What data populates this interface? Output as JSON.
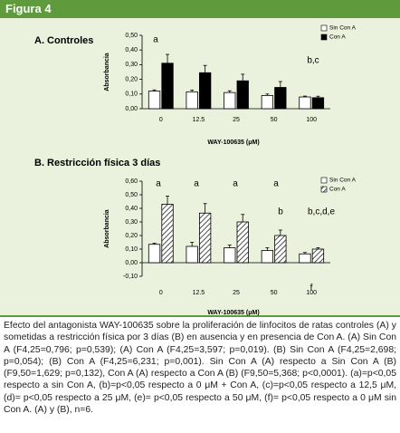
{
  "header": "Figura 4",
  "caption": "Efecto del antagonista WAY-100635 sobre la proliferación de linfocitos de ratas controles (A) y sometidas a restricción física por 3 días (B) en ausencia y en presencia de Con A. (A) Sin Con A (F4,25=0,796; p=0,539); (A) Con A (F4,25=3,597; p=0,019). (B) Sin Con A (F4,25=2,698; p=0,054); (B) Con A (F4,25=6,231; p=0,001). Sin Con A (A) respecto a Sin Con A (B) (F9,50=1,629; p=0,132), Con A (A) respecto a Con A (B) (F9,50=5,368; p<0,0001). (a)=p<0,05 respecto a sin Con A, (b)=p<0,05 respecto a 0 μM + Con A, (c)=p<0,05 respecto a 12,5 μM, (d)= p<0,05 respecto a 25 μM, (e)= p<0,05 respecto a 50 μM, (f)= p<0,05 respecto a 0 μM sin Con A. (A) y (B), n=6.",
  "chart_data": [
    {
      "type": "bar",
      "title": "A. Controles",
      "y_label": "Absorbancia",
      "x_label": "WAY-100635 (μM)",
      "categories": [
        "0",
        "12.5",
        "25",
        "50",
        "100"
      ],
      "series": [
        {
          "name": "Sin Con A",
          "color": "#ffffff",
          "hatch": false,
          "values": [
            0.12,
            0.115,
            0.11,
            0.09,
            0.08
          ],
          "errors": [
            0.008,
            0.012,
            0.012,
            0.01,
            0.006
          ]
        },
        {
          "name": "Con A",
          "color": "#000000",
          "hatch": false,
          "values": [
            0.31,
            0.245,
            0.19,
            0.145,
            0.075
          ],
          "errors": [
            0.06,
            0.05,
            0.045,
            0.04,
            0.01
          ]
        }
      ],
      "ylim": [
        0,
        0.5
      ],
      "yticks": [
        {
          "value": 0,
          "label": "0,00"
        },
        {
          "value": 0.1,
          "label": "0,10"
        },
        {
          "value": 0.2,
          "label": "0,20"
        },
        {
          "value": 0.3,
          "label": "0,30"
        },
        {
          "value": 0.4,
          "label": "0,40"
        },
        {
          "value": 0.5,
          "label": "0,50"
        }
      ],
      "annotations": [
        "a",
        "b,c"
      ]
    },
    {
      "type": "bar",
      "title": "B. Restricción física 3 días",
      "y_label": "Absorbancia",
      "x_label": "WAY-100635 (μM)",
      "categories": [
        "0",
        "12.5",
        "25",
        "50",
        "100"
      ],
      "series": [
        {
          "name": "Sin Con A",
          "color": "#ffffff",
          "hatch": false,
          "values": [
            0.135,
            0.12,
            0.11,
            0.09,
            0.065
          ],
          "errors": [
            0.008,
            0.03,
            0.02,
            0.02,
            0.01
          ]
        },
        {
          "name": "Con A",
          "color": "#ffffff",
          "hatch": true,
          "values": [
            0.43,
            0.365,
            0.3,
            0.2,
            0.1
          ],
          "errors": [
            0.06,
            0.07,
            0.055,
            0.04,
            0.01
          ]
        }
      ],
      "ylim": [
        -0.1,
        0.6
      ],
      "yticks": [
        {
          "value": -0.1,
          "label": "-0,10"
        },
        {
          "value": 0,
          "label": "0,00"
        },
        {
          "value": 0.1,
          "label": "0,10"
        },
        {
          "value": 0.2,
          "label": "0,20"
        },
        {
          "value": 0.3,
          "label": "0,30"
        },
        {
          "value": 0.4,
          "label": "0,40"
        },
        {
          "value": 0.5,
          "label": "0,50"
        },
        {
          "value": 0.6,
          "label": "0,60"
        }
      ],
      "annotations": [
        "a",
        "a",
        "a",
        "a",
        "b",
        "b,c,d,e",
        "f"
      ]
    }
  ]
}
